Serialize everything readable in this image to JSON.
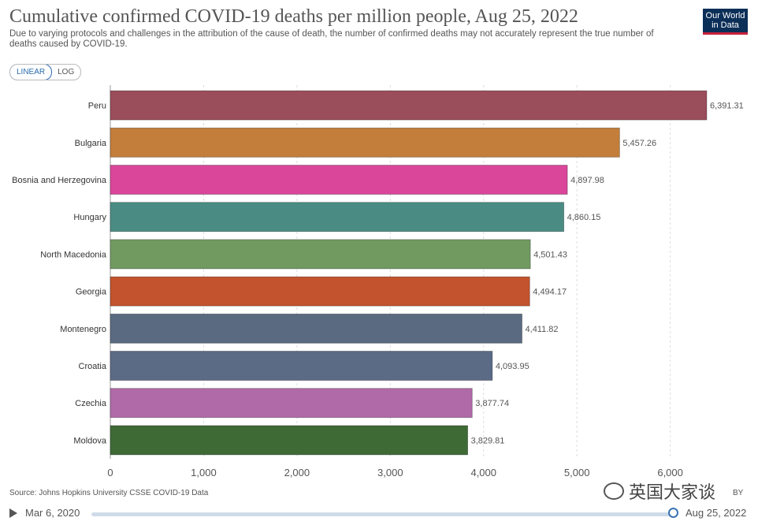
{
  "header": {
    "title": "Cumulative confirmed COVID-19 deaths per million people, Aug 25, 2022",
    "subtitle": "Due to varying protocols and challenges in the attribution of the cause of death, the number of confirmed deaths may not accurately represent the true number of deaths caused by COVID-19.",
    "logo_line1": "Our World",
    "logo_line2": "in Data"
  },
  "scale_toggle": {
    "linear": "LINEAR",
    "log": "LOG",
    "selected": "LINEAR"
  },
  "chart_data": {
    "type": "bar",
    "orientation": "horizontal",
    "title": "Cumulative confirmed COVID-19 deaths per million people, Aug 25, 2022",
    "categories": [
      "Peru",
      "Bulgaria",
      "Bosnia and Herzegovina",
      "Hungary",
      "North Macedonia",
      "Georgia",
      "Montenegro",
      "Croatia",
      "Czechia",
      "Moldova"
    ],
    "values": [
      6391.31,
      5457.26,
      4897.98,
      4860.15,
      4501.43,
      4494.17,
      4411.82,
      4093.95,
      3877.74,
      3829.81
    ],
    "value_labels": [
      "6,391.31",
      "5,457.26",
      "4,897.98",
      "4,860.15",
      "4,501.43",
      "4,494.17",
      "4,411.82",
      "4,093.95",
      "3,877.74",
      "3,829.81"
    ],
    "colors": [
      "#9a4d5a",
      "#c27e3a",
      "#d9469a",
      "#4a8c84",
      "#719a61",
      "#c2532e",
      "#5a6a80",
      "#5b6a85",
      "#b06aa8",
      "#3e6a35"
    ],
    "xlim": [
      0,
      6400
    ],
    "x_ticks": [
      0,
      1000,
      2000,
      3000,
      4000,
      5000,
      6000
    ],
    "x_tick_labels": [
      "0",
      "1,000",
      "2,000",
      "3,000",
      "4,000",
      "5,000",
      "6,000"
    ],
    "grid": true
  },
  "footer": {
    "source": "Source: Johns Hopkins University CSSE COVID-19 Data",
    "cc": "BY"
  },
  "timeline": {
    "start": "Mar 6, 2020",
    "end": "Aug 25, 2022"
  },
  "watermark": {
    "text": "英国大家谈"
  }
}
